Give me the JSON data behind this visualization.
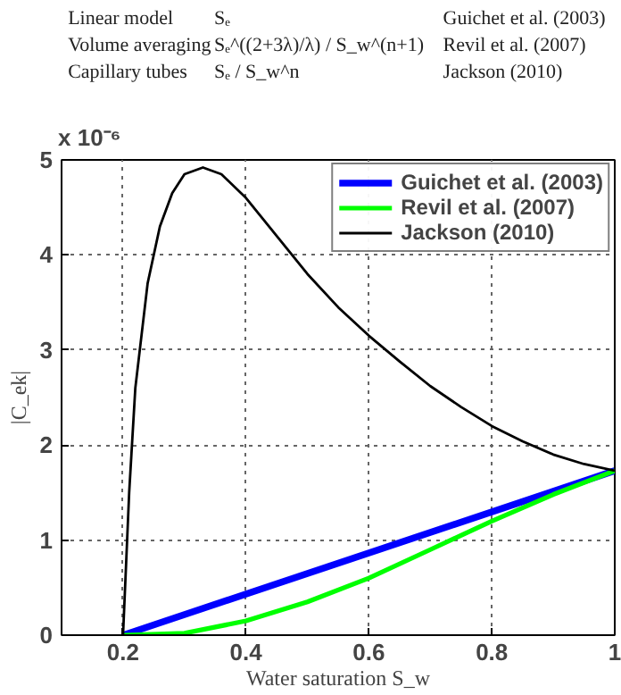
{
  "chart_data": {
    "type": "line",
    "xlabel": "Water saturation S_w",
    "ylabel": "|C_ek|",
    "annotations": [
      "Linear model",
      "Sₑ",
      "Guichet et al. (2003)",
      "Volume averaging",
      "Sₑ^((2+3λ)/λ) / S_w^(n+1)",
      "Revil et al. (2007)",
      "Capillary tubes",
      "Sₑ / S_w^n",
      "Jackson (2010)",
      "x 10⁻⁶"
    ],
    "series": [
      {
        "name": "Guichet et al. (2003)",
        "color": "#0000ff",
        "x": [
          0.2,
          1.0
        ],
        "values": [
          0,
          1.73
        ]
      },
      {
        "name": "Revil et al. (2007)",
        "color": "#00ff00",
        "x": [
          0.2,
          0.3,
          0.4,
          0.5,
          0.6,
          0.7,
          0.8,
          0.9,
          1.0
        ],
        "values": [
          0,
          0.02,
          0.15,
          0.35,
          0.6,
          0.9,
          1.2,
          1.48,
          1.73
        ]
      },
      {
        "name": "Jackson (2010)",
        "color": "#000000",
        "x": [
          0.2,
          0.21,
          0.22,
          0.24,
          0.26,
          0.28,
          0.3,
          0.33,
          0.36,
          0.4,
          0.45,
          0.5,
          0.55,
          0.6,
          0.65,
          0.7,
          0.75,
          0.8,
          0.85,
          0.9,
          0.95,
          1.0
        ],
        "values": [
          0,
          1.5,
          2.6,
          3.7,
          4.3,
          4.65,
          4.85,
          4.92,
          4.85,
          4.6,
          4.2,
          3.8,
          3.45,
          3.15,
          2.88,
          2.62,
          2.4,
          2.2,
          2.04,
          1.9,
          1.8,
          1.73
        ]
      }
    ],
    "xlim": [
      0.1,
      1.0
    ],
    "ylim": [
      0,
      5
    ],
    "xticks": [
      0.2,
      0.4,
      0.6,
      0.8,
      1
    ],
    "yticks": [
      0,
      1,
      2,
      3,
      4,
      5
    ],
    "grid": true,
    "legend": "top right",
    "line_style": "solid",
    "marker": "none"
  }
}
